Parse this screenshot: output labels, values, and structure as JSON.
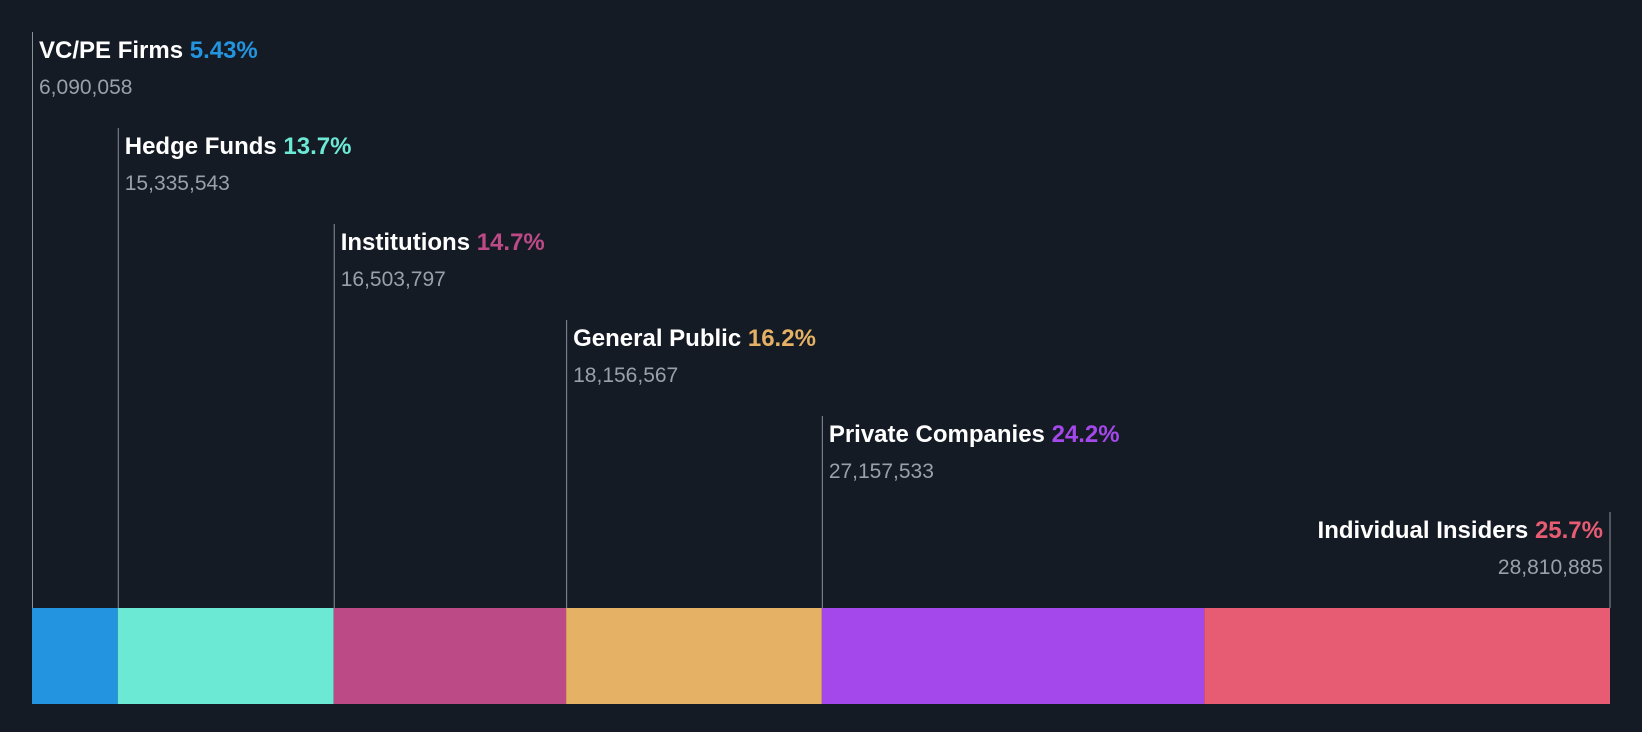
{
  "chart_data": {
    "type": "bar",
    "title": "",
    "orientation": "horizontal-stacked-100",
    "unit": "shares",
    "categories": [
      "VC/PE Firms",
      "Hedge Funds",
      "Institutions",
      "General Public",
      "Private Companies",
      "Individual Insiders"
    ],
    "series": [
      {
        "name": "Ownership",
        "values": [
          6090058,
          15335543,
          16503797,
          18156567,
          27157533,
          28810885
        ],
        "percent_labels": [
          "5.43%",
          "13.7%",
          "14.7%",
          "16.2%",
          "24.2%",
          "25.7%"
        ],
        "value_labels": [
          "6,090,058",
          "15,335,543",
          "16,503,797",
          "18,156,567",
          "27,157,533",
          "28,810,885"
        ]
      }
    ],
    "colors": [
      "#2394df",
      "#6ce9d5",
      "#bc4a87",
      "#e5b165",
      "#a548eb",
      "#e85c73"
    ],
    "label_color": "#ffffff",
    "sublabel_color": "#9aa0a8",
    "leader_color": "#8a8f98",
    "background": "#151b24"
  }
}
